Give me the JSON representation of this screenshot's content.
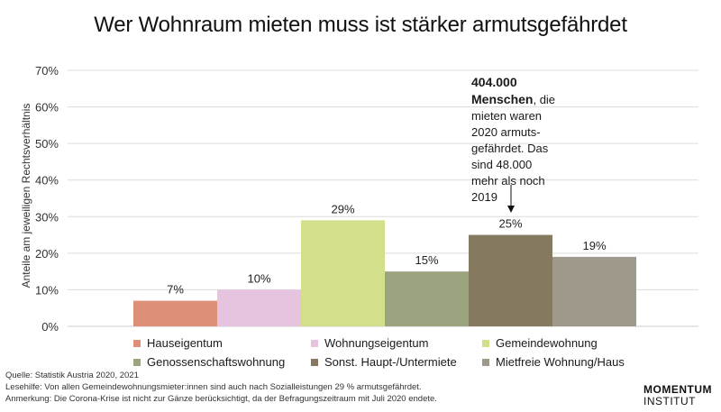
{
  "header": {
    "title": "Wer Wohnraum mieten muss ist stärker armutsgefährdet"
  },
  "annotation": {
    "bold": "404.000 Menschen",
    "rest": ", die mieten waren 2020 armuts-gefährdet. Das sind 48.000 mehr als noch 2019"
  },
  "chart_data": {
    "type": "bar",
    "categories": [
      "Hauseigentum",
      "Wohnungseigentum",
      "Gemeindewohnung",
      "Genossenschaftswohnung",
      "Sonst. Haupt-/Untermiete",
      "Mietfreie Wohnung/Haus"
    ],
    "values": [
      7,
      10,
      29,
      15,
      25,
      19
    ],
    "data_labels": [
      "7%",
      "10%",
      "29%",
      "15%",
      "25%",
      "19%"
    ],
    "colors": [
      "#de8f78",
      "#e6c3de",
      "#d4df8c",
      "#9aa47e",
      "#857a60",
      "#9e998a"
    ],
    "ylabel": "Anteile am jeweiligen Rechtsverhältnis",
    "ylim": [
      0,
      70
    ],
    "yticks": [
      0,
      10,
      20,
      30,
      40,
      50,
      60,
      70
    ],
    "ytick_labels": [
      "0%",
      "10%",
      "20%",
      "30%",
      "40%",
      "50%",
      "60%",
      "70%"
    ],
    "grid": true,
    "legend": "bottom"
  },
  "footer": {
    "source": "Quelle: Statistik Austria 2020, 2021",
    "reading_help": "Lesehilfe: Von allen Gemeindewohnungsmieter:innen sind auch nach Sozialleistungen 29 % armutsgefährdet.",
    "note": "Anmerkung: Die Corona-Krise ist nicht zur Gänze berücksichtigt, da der Befragungszeitraum mit Juli 2020 endete."
  },
  "logo": {
    "line1": "MOMENTUM",
    "line2": "INSTITUT"
  }
}
